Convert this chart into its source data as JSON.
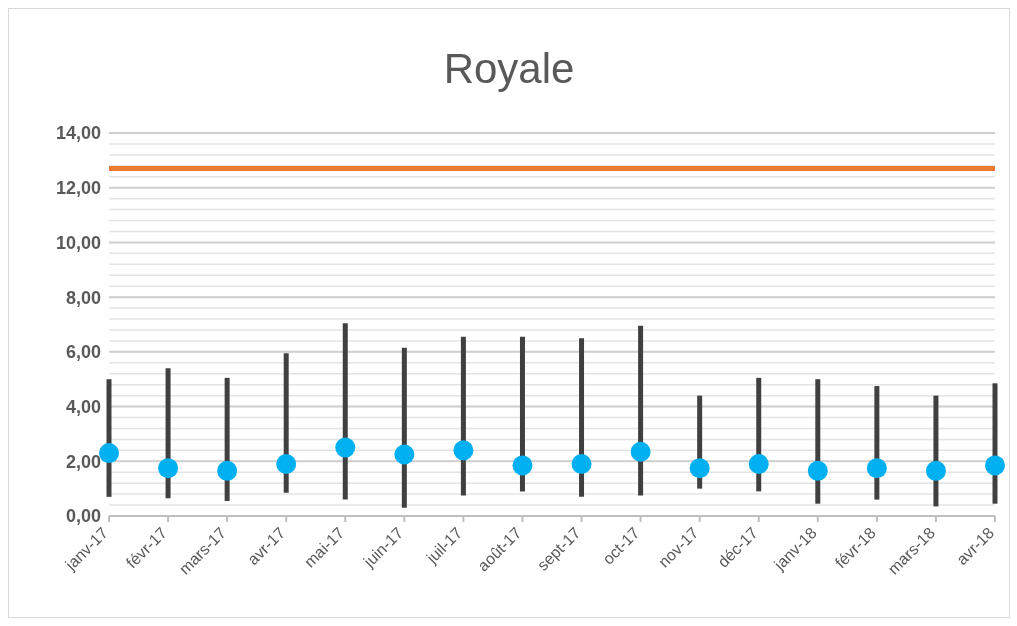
{
  "chart_data": {
    "type": "scatter",
    "title": "Royale",
    "categories": [
      "janv-17",
      "févr-17",
      "mars-17",
      "avr-17",
      "mai-17",
      "juin-17",
      "juil-17",
      "août-17",
      "sept-17",
      "oct-17",
      "nov-17",
      "déc-17",
      "janv-18",
      "févr-18",
      "mars-18",
      "avr-18"
    ],
    "series": [
      {
        "color": "#00b0f0",
        "values": [
          2.3,
          1.75,
          1.65,
          1.9,
          2.5,
          2.25,
          2.4,
          1.85,
          1.9,
          2.35,
          1.75,
          1.9,
          1.65,
          1.75,
          1.65,
          1.85
        ],
        "errors": [
          [
            0.7,
            5.0
          ],
          [
            0.65,
            5.4
          ],
          [
            0.55,
            5.05
          ],
          [
            0.85,
            5.95
          ],
          [
            0.6,
            7.05
          ],
          [
            0.3,
            6.15
          ],
          [
            0.75,
            6.55
          ],
          [
            0.9,
            6.55
          ],
          [
            0.7,
            6.5
          ],
          [
            0.75,
            6.95
          ],
          [
            1.0,
            4.4
          ],
          [
            0.9,
            5.05
          ],
          [
            0.45,
            5.0
          ],
          [
            0.6,
            4.75
          ],
          [
            0.35,
            4.4
          ],
          [
            0.45,
            4.85
          ]
        ]
      }
    ],
    "marker": "circle",
    "ylim": [
      0,
      14
    ],
    "yticks": [
      {
        "value": 0,
        "label": "0,00"
      },
      {
        "value": 0.4,
        "label": null
      },
      {
        "value": 0.8,
        "label": null
      },
      {
        "value": 1.2,
        "label": null
      },
      {
        "value": 1.6,
        "label": null
      },
      {
        "value": 2,
        "label": "2,00"
      },
      {
        "value": 2.4,
        "label": null
      },
      {
        "value": 2.8,
        "label": null
      },
      {
        "value": 3.2,
        "label": null
      },
      {
        "value": 3.6,
        "label": null
      },
      {
        "value": 4,
        "label": "4,00"
      },
      {
        "value": 4.4,
        "label": null
      },
      {
        "value": 4.8,
        "label": null
      },
      {
        "value": 5.2,
        "label": null
      },
      {
        "value": 5.6,
        "label": null
      },
      {
        "value": 6,
        "label": "6,00"
      },
      {
        "value": 6.4,
        "label": null
      },
      {
        "value": 6.8,
        "label": null
      },
      {
        "value": 7.2,
        "label": null
      },
      {
        "value": 7.6,
        "label": null
      },
      {
        "value": 8,
        "label": "8,00"
      },
      {
        "value": 8.4,
        "label": null
      },
      {
        "value": 8.8,
        "label": null
      },
      {
        "value": 9.2,
        "label": null
      },
      {
        "value": 9.6,
        "label": null
      },
      {
        "value": 10,
        "label": "10,00"
      },
      {
        "value": 10.4,
        "label": null
      },
      {
        "value": 10.8,
        "label": null
      },
      {
        "value": 11.2,
        "label": null
      },
      {
        "value": 11.6,
        "label": null
      },
      {
        "value": 12,
        "label": "12,00"
      },
      {
        "value": 12.4,
        "label": null
      },
      {
        "value": 12.8,
        "label": null
      },
      {
        "value": 13.2,
        "label": null
      },
      {
        "value": 13.6,
        "label": null
      },
      {
        "value": 14,
        "label": "14,00"
      }
    ],
    "grid": "y",
    "ref_lines": [
      {
        "axis": "y",
        "value": 12.7,
        "color": "#ed7d31"
      }
    ]
  }
}
